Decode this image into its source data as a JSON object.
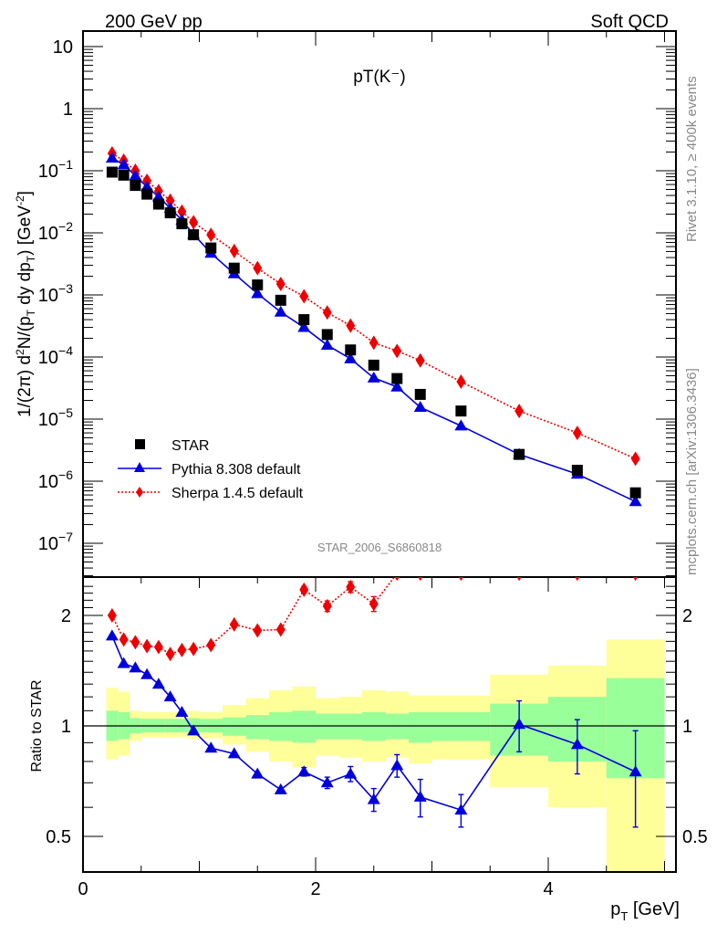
{
  "header": {
    "left": "200 GeV pp",
    "right": "Soft QCD",
    "plot_title": "pT(K⁻)",
    "watermark": "STAR_2006_S6860818",
    "side_top": "Rivet 3.1.10, ≥ 400k events",
    "side_bottom": "mcplots.cern.ch [arXiv:1306.3436]"
  },
  "chart_data": [
    {
      "type": "scatter",
      "panel": "main",
      "title": "pT(K⁻)",
      "xlabel": "p_T [GeV]",
      "ylabel": "1/(2π) d²N/(p_T dy dp_T) [GeV⁻²]",
      "yscale": "log",
      "xlim": [
        0,
        5.1
      ],
      "ylim": [
        3e-08,
        20
      ],
      "yticks": [
        {
          "v": 10,
          "label": "10"
        },
        {
          "v": 1,
          "label": "1"
        },
        {
          "v": 0.1,
          "label": "10⁻¹"
        },
        {
          "v": 0.01,
          "label": "10⁻²"
        },
        {
          "v": 0.001,
          "label": "10⁻³"
        },
        {
          "v": 0.0001,
          "label": "10⁻⁴"
        },
        {
          "v": 1e-05,
          "label": "10⁻⁵"
        },
        {
          "v": 1e-06,
          "label": "10⁻⁶"
        },
        {
          "v": 1e-07,
          "label": "10⁻⁷"
        }
      ],
      "legend_placement": "lower-left",
      "x": [
        0.25,
        0.35,
        0.45,
        0.55,
        0.65,
        0.75,
        0.85,
        0.95,
        1.1,
        1.3,
        1.5,
        1.7,
        1.9,
        2.1,
        2.3,
        2.5,
        2.7,
        2.9,
        3.25,
        3.75,
        4.25,
        4.75
      ],
      "series": [
        {
          "name": "STAR",
          "marker": "square",
          "color": "#000000",
          "line": "none",
          "values": [
            0.095,
            0.085,
            0.058,
            0.042,
            0.029,
            0.021,
            0.014,
            0.0093,
            0.0057,
            0.0027,
            0.00145,
            0.00082,
            0.0004,
            0.00023,
            0.00013,
            7.4e-05,
            4.5e-05,
            2.5e-05,
            1.35e-05,
            2.7e-06,
            1.5e-06,
            6.5e-07
          ]
        },
        {
          "name": "Pythia 8.308 default",
          "marker": "triangle",
          "color": "#0000dd",
          "line": "solid",
          "values": [
            0.16,
            0.125,
            0.083,
            0.055,
            0.038,
            0.025,
            0.016,
            0.0095,
            0.0047,
            0.0022,
            0.00105,
            0.00053,
            0.0003,
            0.000155,
            9.4e-05,
            4.6e-05,
            3.3e-05,
            1.55e-05,
            7.8e-06,
            2.7e-06,
            1.3e-06,
            4.7e-07
          ]
        },
        {
          "name": "Sherpa 1.4.5 default",
          "marker": "diamond",
          "color": "#ee0000",
          "line": "dotted",
          "values": [
            0.19,
            0.145,
            0.1,
            0.069,
            0.047,
            0.033,
            0.022,
            0.0148,
            0.0093,
            0.0051,
            0.0027,
            0.0015,
            0.00095,
            0.00052,
            0.00032,
            0.00017,
            0.000125,
            8.8e-05,
            4e-05,
            1.35e-05,
            6e-06,
            2.3e-06
          ]
        }
      ]
    },
    {
      "type": "line",
      "panel": "ratio",
      "ylabel": "Ratio to STAR",
      "xlabel": "p_T [GeV]",
      "yscale": "log",
      "xlim": [
        0,
        5.1
      ],
      "ylim": [
        0.42,
        2.5
      ],
      "yticks": [
        {
          "v": 2,
          "label": "2"
        },
        {
          "v": 1,
          "label": "1"
        },
        {
          "v": 0.5,
          "label": "0.5"
        }
      ],
      "xticks": [
        {
          "v": 0,
          "label": "0"
        },
        {
          "v": 2,
          "label": "2"
        },
        {
          "v": 4,
          "label": "4"
        }
      ],
      "bands": {
        "edges": [
          0.2,
          0.3,
          0.4,
          0.5,
          0.6,
          0.7,
          0.8,
          0.9,
          1.0,
          1.2,
          1.4,
          1.6,
          1.8,
          2.0,
          2.2,
          2.4,
          2.6,
          2.8,
          3.0,
          3.5,
          4.0,
          4.5,
          5.0
        ],
        "inner_color": "#99ff99",
        "outer_color": "#ffff99",
        "inner_lo": [
          0.91,
          0.92,
          0.955,
          0.96,
          0.96,
          0.96,
          0.96,
          0.96,
          0.96,
          0.94,
          0.92,
          0.91,
          0.9,
          0.92,
          0.92,
          0.91,
          0.92,
          0.9,
          0.91,
          0.83,
          0.8,
          0.72,
          0.72
        ],
        "inner_hi": [
          1.1,
          1.09,
          1.05,
          1.045,
          1.045,
          1.045,
          1.045,
          1.05,
          1.045,
          1.055,
          1.07,
          1.09,
          1.1,
          1.08,
          1.08,
          1.09,
          1.08,
          1.09,
          1.09,
          1.15,
          1.2,
          1.35,
          1.35
        ],
        "outer_lo": [
          0.81,
          0.83,
          0.91,
          0.93,
          0.93,
          0.93,
          0.93,
          0.92,
          0.925,
          0.89,
          0.85,
          0.8,
          0.77,
          0.83,
          0.82,
          0.8,
          0.82,
          0.79,
          0.81,
          0.68,
          0.6,
          0.36,
          0.36
        ],
        "outer_hi": [
          1.27,
          1.24,
          1.1,
          1.09,
          1.09,
          1.09,
          1.09,
          1.1,
          1.09,
          1.14,
          1.19,
          1.25,
          1.28,
          1.19,
          1.2,
          1.25,
          1.24,
          1.21,
          1.21,
          1.38,
          1.46,
          1.72,
          1.72
        ]
      },
      "reference_line": 1,
      "x": [
        0.25,
        0.35,
        0.45,
        0.55,
        0.65,
        0.75,
        0.85,
        0.95,
        1.1,
        1.3,
        1.5,
        1.7,
        1.9,
        2.1,
        2.3,
        2.5,
        2.7,
        2.9,
        3.25,
        3.75,
        4.25,
        4.75
      ],
      "series": [
        {
          "name": "Pythia 8.308 default",
          "marker": "triangle",
          "color": "#0000dd",
          "line": "solid",
          "values": [
            1.76,
            1.48,
            1.44,
            1.38,
            1.3,
            1.2,
            1.09,
            0.97,
            0.87,
            0.84,
            0.74,
            0.67,
            0.75,
            0.7,
            0.74,
            0.63,
            0.78,
            0.64,
            0.59,
            1.01,
            0.89,
            0.75
          ],
          "err": [
            0,
            0,
            0,
            0,
            0,
            0,
            0,
            0,
            0,
            0,
            0,
            0,
            0.02,
            0.025,
            0.035,
            0.045,
            0.055,
            0.075,
            0.06,
            0.16,
            0.15,
            0.22
          ]
        },
        {
          "name": "Sherpa 1.4.5 default",
          "marker": "diamond",
          "color": "#ee0000",
          "line": "dotted",
          "values": [
            2.0,
            1.72,
            1.69,
            1.65,
            1.64,
            1.57,
            1.61,
            1.62,
            1.66,
            1.89,
            1.82,
            1.83,
            2.35,
            2.12,
            2.39,
            2.15,
            2.6,
            2.6,
            2.6,
            2.6,
            2.6,
            2.6
          ],
          "err": [
            0,
            0,
            0,
            0,
            0,
            0,
            0,
            0,
            0,
            0,
            0,
            0,
            0.05,
            0.07,
            0.08,
            0.1,
            0,
            0,
            0,
            0,
            0,
            0
          ]
        }
      ]
    }
  ]
}
